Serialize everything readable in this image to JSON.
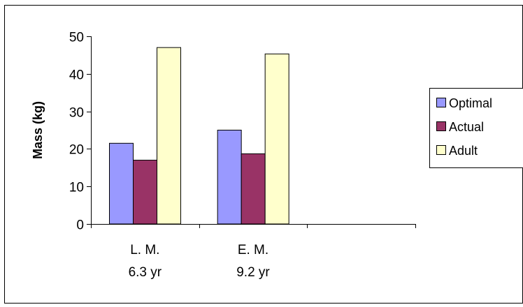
{
  "chart_data": {
    "type": "bar",
    "title": "",
    "xlabel": "",
    "ylabel": "Mass (kg)",
    "ylim": [
      0,
      50
    ],
    "yticks": [
      0,
      10,
      20,
      30,
      40,
      50
    ],
    "grid": false,
    "legend_position": "right",
    "categories": [
      [
        "L. M.",
        "6.3  yr"
      ],
      [
        "E. M.",
        "9.2 yr"
      ],
      [
        "",
        ""
      ]
    ],
    "series": [
      {
        "name": "Optimal",
        "color": "#9999ff",
        "values": [
          21.5,
          25,
          null
        ]
      },
      {
        "name": "Actual",
        "color": "#993366",
        "values": [
          17,
          18.7,
          null
        ]
      },
      {
        "name": "Adult",
        "color": "#ffffcc",
        "values": [
          47,
          45.3,
          null
        ]
      }
    ]
  }
}
